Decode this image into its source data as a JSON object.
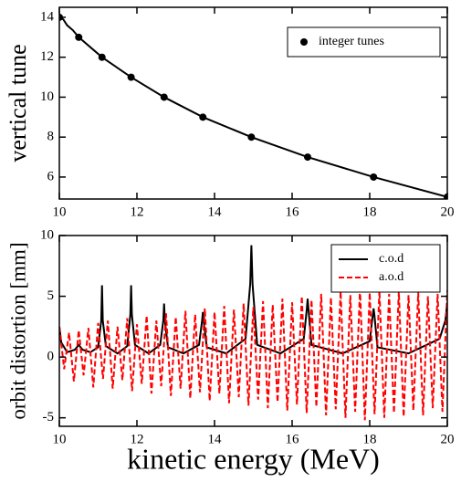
{
  "chart_data": [
    {
      "type": "line",
      "ylabel": "vertical tune",
      "xlim": [
        10,
        20
      ],
      "xticks": [
        10,
        12,
        14,
        16,
        18,
        20
      ],
      "ylim": [
        4.9,
        14.5
      ],
      "yticks": [
        6,
        8,
        10,
        12,
        14
      ],
      "legend": "upper right",
      "series": [
        {
          "style": "line",
          "color": "#000000",
          "x": [
            10,
            10.1,
            10.2,
            10.35,
            10.5,
            11.1,
            11.85,
            12.7,
            13.7,
            14.95,
            16.4,
            18.1,
            20
          ],
          "values": [
            14,
            13.9,
            13.6,
            13.35,
            13,
            12,
            11,
            10,
            9,
            8,
            7,
            6,
            5
          ]
        },
        {
          "style": "points",
          "name": "integer tunes",
          "color": "#000000",
          "x": [
            10,
            10.5,
            11.1,
            11.85,
            12.7,
            13.7,
            14.95,
            16.4,
            18.1,
            20
          ],
          "values": [
            14,
            13,
            12,
            11,
            10,
            9,
            8,
            7,
            6,
            5
          ]
        }
      ]
    },
    {
      "type": "line",
      "ylabel": "orbit distortion [mm]",
      "xlabel": "kinetic energy (MeV)",
      "xlim": [
        10,
        20
      ],
      "xticks": [
        10,
        12,
        14,
        16,
        18,
        20
      ],
      "ylim": [
        -5.7,
        10
      ],
      "yticks": [
        -5,
        0,
        5,
        10
      ],
      "legend": "upper right",
      "series": [
        {
          "style": "line",
          "name": "c.o.d",
          "color": "#000000",
          "x": [
            10,
            10.05,
            10.2,
            10.4,
            10.5,
            10.6,
            10.8,
            11.0,
            11.08,
            11.1,
            11.12,
            11.2,
            11.5,
            11.75,
            11.83,
            11.85,
            11.87,
            11.95,
            12.3,
            12.6,
            12.68,
            12.7,
            12.72,
            12.8,
            13.2,
            13.6,
            13.68,
            13.7,
            13.72,
            13.8,
            14.3,
            14.8,
            14.92,
            14.95,
            14.98,
            15.1,
            15.7,
            16.3,
            16.38,
            16.4,
            16.42,
            16.5,
            17.3,
            18.0,
            18.08,
            18.1,
            18.12,
            18.2,
            19.0,
            19.8,
            19.95,
            20
          ],
          "values": [
            2.5,
            1.2,
            0.4,
            0.6,
            1.0,
            0.6,
            0.4,
            0.8,
            3.0,
            5.9,
            3.0,
            0.9,
            0.3,
            0.9,
            3.5,
            5.9,
            3.5,
            1.0,
            0.3,
            1.0,
            3.0,
            4.4,
            3.0,
            0.8,
            0.3,
            1.0,
            3.0,
            3.7,
            3.0,
            0.8,
            0.3,
            1.5,
            6.0,
            9.2,
            6.0,
            1.0,
            0.3,
            1.5,
            4.0,
            4.8,
            4.0,
            1.0,
            0.3,
            1.3,
            3.5,
            4.0,
            3.5,
            0.8,
            0.3,
            1.5,
            3.0,
            4.5
          ]
        },
        {
          "style": "dashed",
          "name": "a.o.d",
          "color": "#ff0000",
          "x": [
            10,
            10.125,
            10.25,
            10.375,
            10.5,
            10.625,
            10.75,
            10.875,
            11,
            11.125,
            11.25,
            11.375,
            11.5,
            11.625,
            11.75,
            11.875,
            12,
            12.125,
            12.25,
            12.375,
            12.5,
            12.625,
            12.75,
            12.875,
            13,
            13.125,
            13.25,
            13.375,
            13.5,
            13.625,
            13.75,
            13.875,
            14,
            14.125,
            14.25,
            14.375,
            14.5,
            14.625,
            14.75,
            14.875,
            15,
            15.125,
            15.25,
            15.375,
            15.5,
            15.625,
            15.75,
            15.875,
            16,
            16.125,
            16.25,
            16.375,
            16.5,
            16.625,
            16.75,
            16.875,
            17,
            17.125,
            17.25,
            17.375,
            17.5,
            17.625,
            17.75,
            17.875,
            18,
            18.125,
            18.25,
            18.375,
            18.5,
            18.625,
            18.75,
            18.875,
            19,
            19.125,
            19.25,
            19.375,
            19.5,
            19.625,
            19.75,
            19.875,
            20
          ],
          "values": [
            2.5,
            -1.0,
            2.0,
            -2.0,
            2.2,
            -1.5,
            2.4,
            -2.5,
            2.8,
            -1.8,
            3.0,
            -2.6,
            2.5,
            -1.9,
            3.2,
            -2.8,
            2.7,
            -2.2,
            3.4,
            -3.0,
            3.0,
            -2.4,
            3.6,
            -3.2,
            3.3,
            -2.6,
            3.8,
            -3.4,
            3.5,
            -2.9,
            4.0,
            -3.6,
            3.7,
            -3.0,
            4.2,
            -3.8,
            3.9,
            -3.3,
            4.4,
            -4.0,
            4.1,
            -3.5,
            4.6,
            -4.2,
            4.3,
            -3.7,
            4.8,
            -4.4,
            4.5,
            -3.9,
            5.0,
            -4.6,
            4.7,
            -4.1,
            5.2,
            -4.8,
            4.9,
            -4.3,
            5.4,
            -5.0,
            5.1,
            -4.5,
            5.6,
            -5.2,
            5.3,
            -4.7,
            5.5,
            -5.0,
            5.2,
            -4.6,
            5.4,
            -4.9,
            5.1,
            -4.4,
            5.3,
            -4.8,
            5.0,
            -4.2,
            5.2,
            -4.5,
            5.5
          ]
        }
      ]
    }
  ]
}
